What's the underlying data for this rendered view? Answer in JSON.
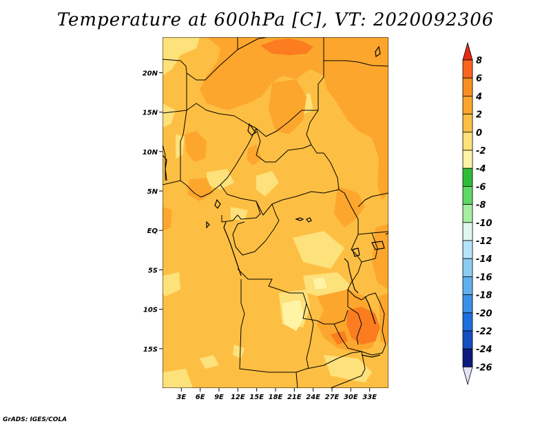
{
  "title": "Temperature at 600hPa [C], VT: 2020092306",
  "credit": "GrADS: IGES/COLA",
  "map": {
    "lon_range": [
      0,
      36
    ],
    "lat_range": [
      -20,
      24.5
    ],
    "lat_ticks": [
      {
        "value": 20,
        "label": "20N"
      },
      {
        "value": 15,
        "label": "15N"
      },
      {
        "value": 10,
        "label": "10N"
      },
      {
        "value": 5,
        "label": "5N"
      },
      {
        "value": 0,
        "label": "EQ"
      },
      {
        "value": -5,
        "label": "5S"
      },
      {
        "value": -10,
        "label": "10S"
      },
      {
        "value": -15,
        "label": "15S"
      }
    ],
    "lon_ticks": [
      {
        "value": 3,
        "label": "3E"
      },
      {
        "value": 6,
        "label": "6E"
      },
      {
        "value": 9,
        "label": "9E"
      },
      {
        "value": 12,
        "label": "12E"
      },
      {
        "value": 15,
        "label": "15E"
      },
      {
        "value": 18,
        "label": "18E"
      },
      {
        "value": 21,
        "label": "21E"
      },
      {
        "value": 24,
        "label": "24E"
      },
      {
        "value": 27,
        "label": "27E"
      },
      {
        "value": 30,
        "label": "30E"
      },
      {
        "value": 33,
        "label": "33E"
      }
    ],
    "colors": {
      "background_0_2": "#fdbf43",
      "band_2_4": "#fda62d",
      "band_4_6": "#fb7d1f",
      "band_m2_0": "#fde17b",
      "band_m4_m2": "#fff4a5",
      "border": "#000000"
    }
  },
  "colorbar": {
    "labels": [
      "8",
      "6",
      "4",
      "2",
      "0",
      "-2",
      "-4",
      "-6",
      "-8",
      "-10",
      "-12",
      "-14",
      "-16",
      "-18",
      "-20",
      "-22",
      "-24",
      "-26"
    ],
    "colors": [
      "#e32b12",
      "#fb641e",
      "#fb8e22",
      "#fda62d",
      "#fdbf43",
      "#fde17b",
      "#fff4a5",
      "#2fbc38",
      "#5fd864",
      "#a6eea2",
      "#e0f7f0",
      "#b6e3f8",
      "#8dccf2",
      "#5fb0ed",
      "#3c91e6",
      "#1f6ee0",
      "#1550c2",
      "#0c1a7e",
      "#e2e2f7"
    ]
  }
}
